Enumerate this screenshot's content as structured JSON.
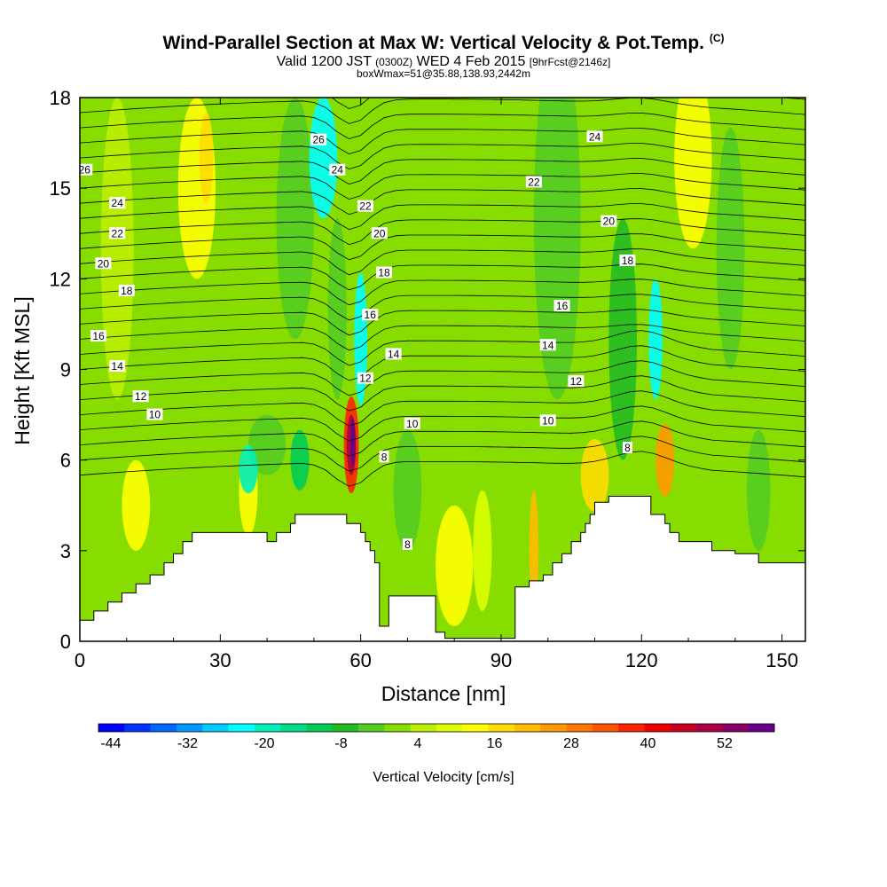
{
  "title": {
    "line1": "Wind-Parallel Section at Max W: Vertical Velocity & Pot.Temp.",
    "copyright": "(C)",
    "valid_a": "Valid 1200 JST",
    "valid_b": "(0300Z)",
    "valid_c": "WED 4 Feb 2015",
    "valid_d": "[9hrFcst@2146z]",
    "line3": "boxWmax=51@35.88,138.93,2442m"
  },
  "chart_data": {
    "type": "heatmap",
    "xlabel": "Distance [nm]",
    "ylabel": "Height [Kft MSL]",
    "xlim": [
      0,
      155
    ],
    "ylim": [
      0,
      18
    ],
    "x_ticks": [
      "0",
      "30",
      "60",
      "90",
      "120",
      "150"
    ],
    "y_ticks": [
      "0",
      "3",
      "6",
      "9",
      "12",
      "15",
      "18"
    ],
    "colorbar": {
      "label": "Vertical Velocity [cm/s]",
      "tick_labels": [
        "-44",
        "-32",
        "-20",
        "-8",
        "4",
        "16",
        "28",
        "40",
        "52"
      ],
      "colors": [
        "#0000ff",
        "#0033ff",
        "#0066ff",
        "#0099ff",
        "#00ccff",
        "#00ffff",
        "#00eebb",
        "#00dd88",
        "#00cc55",
        "#22bb22",
        "#55cc22",
        "#88dd00",
        "#bbee00",
        "#ddff00",
        "#ffff00",
        "#ffdd00",
        "#ffbb00",
        "#ff9900",
        "#ff7700",
        "#ff5500",
        "#ff2200",
        "#ee0000",
        "#cc0022",
        "#aa0044",
        "#880066",
        "#660088"
      ]
    },
    "theta_contour_labels": [
      {
        "text": "26",
        "x": 1,
        "y": 15.6
      },
      {
        "text": "24",
        "x": 8,
        "y": 14.5
      },
      {
        "text": "22",
        "x": 8,
        "y": 13.5
      },
      {
        "text": "20",
        "x": 5,
        "y": 12.5
      },
      {
        "text": "18",
        "x": 10,
        "y": 11.6
      },
      {
        "text": "16",
        "x": 4,
        "y": 10.1
      },
      {
        "text": "14",
        "x": 8,
        "y": 9.1
      },
      {
        "text": "12",
        "x": 13,
        "y": 8.1
      },
      {
        "text": "10",
        "x": 16,
        "y": 7.5
      },
      {
        "text": "26",
        "x": 51,
        "y": 16.6
      },
      {
        "text": "24",
        "x": 55,
        "y": 15.6
      },
      {
        "text": "22",
        "x": 61,
        "y": 14.4
      },
      {
        "text": "20",
        "x": 64,
        "y": 13.5
      },
      {
        "text": "18",
        "x": 65,
        "y": 12.2
      },
      {
        "text": "16",
        "x": 62,
        "y": 10.8
      },
      {
        "text": "14",
        "x": 67,
        "y": 9.5
      },
      {
        "text": "12",
        "x": 61,
        "y": 8.7
      },
      {
        "text": "10",
        "x": 71,
        "y": 7.2
      },
      {
        "text": "8",
        "x": 65,
        "y": 6.1
      },
      {
        "text": "8",
        "x": 70,
        "y": 3.2
      },
      {
        "text": "24",
        "x": 110,
        "y": 16.7
      },
      {
        "text": "22",
        "x": 97,
        "y": 15.2
      },
      {
        "text": "20",
        "x": 113,
        "y": 13.9
      },
      {
        "text": "18",
        "x": 117,
        "y": 12.6
      },
      {
        "text": "16",
        "x": 103,
        "y": 11.1
      },
      {
        "text": "14",
        "x": 100,
        "y": 9.8
      },
      {
        "text": "12",
        "x": 106,
        "y": 8.6
      },
      {
        "text": "10",
        "x": 100,
        "y": 7.3
      },
      {
        "text": "8",
        "x": 117,
        "y": 6.4
      }
    ],
    "terrain_kft": [
      [
        0,
        0.7
      ],
      [
        3,
        0.7
      ],
      [
        3,
        1.0
      ],
      [
        6,
        1.0
      ],
      [
        6,
        1.3
      ],
      [
        9,
        1.3
      ],
      [
        9,
        1.6
      ],
      [
        12,
        1.6
      ],
      [
        12,
        1.9
      ],
      [
        15,
        1.9
      ],
      [
        15,
        2.2
      ],
      [
        18,
        2.2
      ],
      [
        18,
        2.6
      ],
      [
        20,
        2.6
      ],
      [
        20,
        2.9
      ],
      [
        22,
        2.9
      ],
      [
        22,
        3.3
      ],
      [
        24,
        3.3
      ],
      [
        24,
        3.6
      ],
      [
        40,
        3.6
      ],
      [
        40,
        3.3
      ],
      [
        42,
        3.3
      ],
      [
        42,
        3.6
      ],
      [
        45,
        3.6
      ],
      [
        45,
        3.9
      ],
      [
        46,
        3.9
      ],
      [
        46,
        4.2
      ],
      [
        57,
        4.2
      ],
      [
        57,
        3.9
      ],
      [
        60,
        3.9
      ],
      [
        60,
        3.6
      ],
      [
        61,
        3.6
      ],
      [
        61,
        3.3
      ],
      [
        62,
        3.3
      ],
      [
        62,
        3.0
      ],
      [
        63,
        3.0
      ],
      [
        63,
        2.6
      ],
      [
        64,
        2.6
      ],
      [
        64,
        0.5
      ],
      [
        66,
        0.5
      ],
      [
        66,
        1.5
      ],
      [
        76,
        1.5
      ],
      [
        76,
        0.3
      ],
      [
        78,
        0.3
      ],
      [
        78,
        0.1
      ],
      [
        93,
        0.1
      ],
      [
        93,
        1.8
      ],
      [
        96,
        1.8
      ],
      [
        96,
        2.0
      ],
      [
        99,
        2.0
      ],
      [
        99,
        2.2
      ],
      [
        101,
        2.2
      ],
      [
        101,
        2.6
      ],
      [
        103,
        2.6
      ],
      [
        103,
        2.9
      ],
      [
        105,
        2.9
      ],
      [
        105,
        3.3
      ],
      [
        107,
        3.3
      ],
      [
        107,
        3.6
      ],
      [
        108,
        3.6
      ],
      [
        108,
        3.9
      ],
      [
        109,
        3.9
      ],
      [
        109,
        4.2
      ],
      [
        110,
        4.2
      ],
      [
        110,
        4.6
      ],
      [
        113,
        4.6
      ],
      [
        113,
        4.8
      ],
      [
        122,
        4.8
      ],
      [
        122,
        4.2
      ],
      [
        125,
        4.2
      ],
      [
        125,
        3.9
      ],
      [
        126,
        3.9
      ],
      [
        126,
        3.6
      ],
      [
        128,
        3.6
      ],
      [
        128,
        3.3
      ],
      [
        135,
        3.3
      ],
      [
        135,
        3.0
      ],
      [
        140,
        3.0
      ],
      [
        140,
        2.9
      ],
      [
        145,
        2.9
      ],
      [
        145,
        2.6
      ],
      [
        155,
        2.6
      ],
      [
        155,
        0
      ]
    ]
  }
}
